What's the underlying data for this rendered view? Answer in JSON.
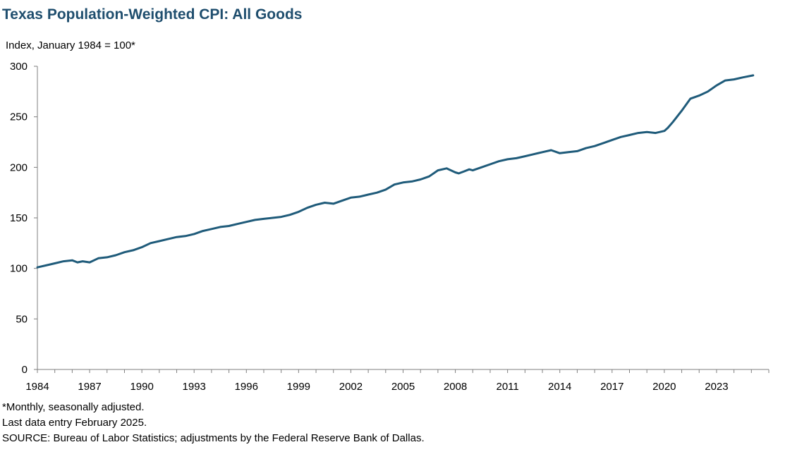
{
  "colors": {
    "title": "#1f4e6e",
    "line": "#1f5b7a",
    "axis": "#7f7f7f"
  },
  "chart_data": {
    "type": "line",
    "title": "Texas Population-Weighted CPI: All Goods",
    "ylabel": "Index, January 1984 = 100*",
    "xlabel": "",
    "ylim": [
      0,
      300
    ],
    "xlim": [
      1984.0,
      2026.0
    ],
    "yticks": [
      "0",
      "50",
      "100",
      "150",
      "200",
      "250",
      "300"
    ],
    "xticks": [
      "1984",
      "1987",
      "1990",
      "1993",
      "1996",
      "1999",
      "2002",
      "2005",
      "2008",
      "2011",
      "2014",
      "2017",
      "2020",
      "2023"
    ],
    "grid": false,
    "series": [
      {
        "name": "Texas Population-Weighted CPI: All Goods",
        "x": [
          1984.0,
          1984.5,
          1985.0,
          1985.5,
          1986.0,
          1986.3,
          1986.6,
          1987.0,
          1987.5,
          1988.0,
          1988.5,
          1989.0,
          1989.5,
          1990.0,
          1990.5,
          1991.0,
          1991.5,
          1992.0,
          1992.5,
          1993.0,
          1993.5,
          1994.0,
          1994.5,
          1995.0,
          1995.5,
          1996.0,
          1996.5,
          1997.0,
          1997.5,
          1998.0,
          1998.5,
          1999.0,
          1999.5,
          2000.0,
          2000.5,
          2001.0,
          2001.5,
          2002.0,
          2002.5,
          2003.0,
          2003.5,
          2004.0,
          2004.5,
          2005.0,
          2005.5,
          2006.0,
          2006.5,
          2007.0,
          2007.5,
          2008.0,
          2008.2,
          2008.5,
          2008.8,
          2009.0,
          2009.5,
          2010.0,
          2010.5,
          2011.0,
          2011.5,
          2012.0,
          2012.5,
          2013.0,
          2013.5,
          2014.0,
          2014.5,
          2015.0,
          2015.5,
          2016.0,
          2016.5,
          2017.0,
          2017.5,
          2018.0,
          2018.5,
          2019.0,
          2019.5,
          2020.0,
          2020.2,
          2020.5,
          2021.0,
          2021.5,
          2022.0,
          2022.5,
          2023.0,
          2023.5,
          2024.0,
          2024.5,
          2025.1
        ],
        "values": [
          101,
          103,
          105,
          107,
          108,
          106,
          107,
          106,
          110,
          111,
          113,
          116,
          118,
          121,
          125,
          127,
          129,
          131,
          132,
          134,
          137,
          139,
          141,
          142,
          144,
          146,
          148,
          149,
          150,
          151,
          153,
          156,
          160,
          163,
          165,
          164,
          167,
          170,
          171,
          173,
          175,
          178,
          183,
          185,
          186,
          188,
          191,
          197,
          199,
          195,
          194,
          196,
          198,
          197,
          200,
          203,
          206,
          208,
          209,
          211,
          213,
          215,
          217,
          214,
          215,
          216,
          219,
          221,
          224,
          227,
          230,
          232,
          234,
          235,
          234,
          236,
          239,
          245,
          256,
          268,
          271,
          275,
          281,
          286,
          287,
          289,
          291
        ]
      }
    ]
  },
  "notes": {
    "line1": "*Monthly, seasonally adjusted.",
    "line2": "Last data entry February 2025.",
    "line3": "SOURCE: Bureau of Labor Statistics; adjustments by the Federal Reserve Bank of Dallas."
  }
}
